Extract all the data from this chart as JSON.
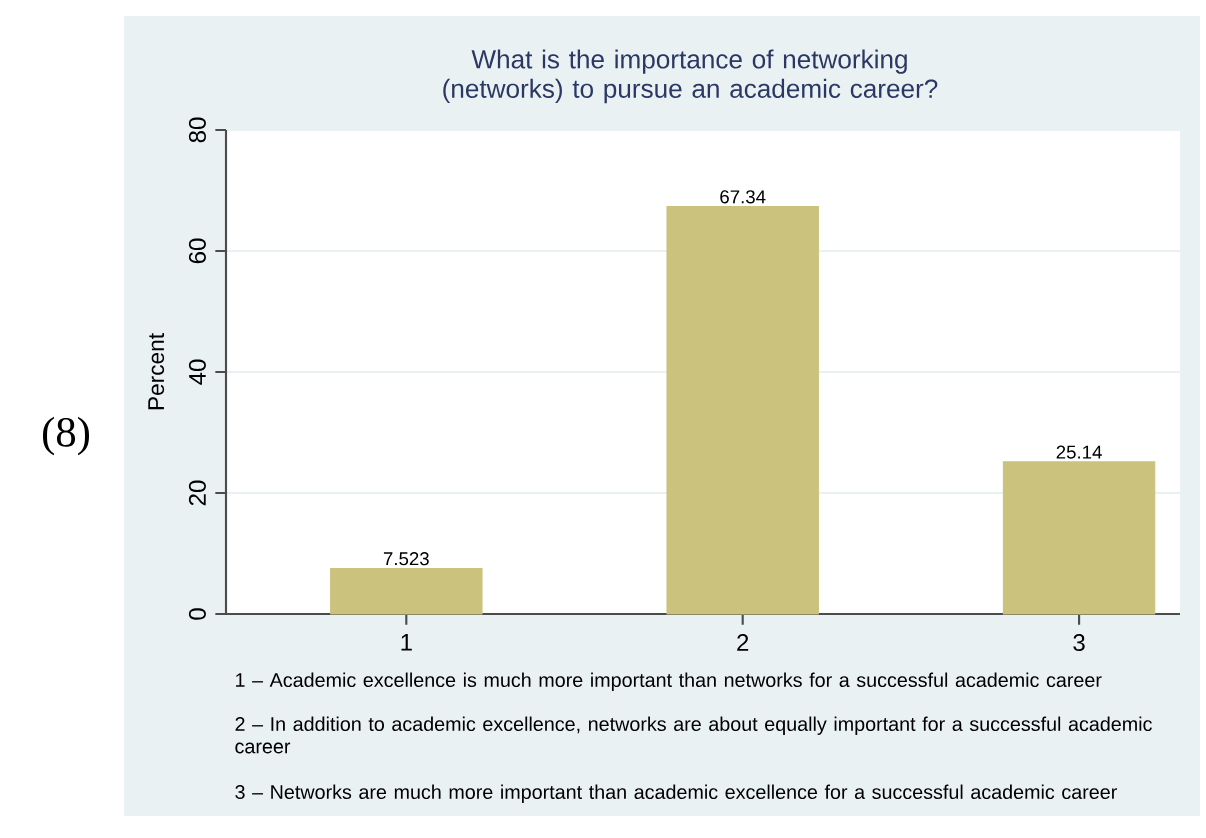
{
  "chart_data": {
    "type": "bar",
    "title": "What is the importance of networking (networks) to pursue an academic career?",
    "ylabel": "Percent",
    "categories": [
      "1",
      "2",
      "3"
    ],
    "values": [
      7.523,
      67.34,
      25.14
    ],
    "color": "#cbc27d",
    "ylim": [
      0,
      80
    ],
    "yticks": [
      0,
      20,
      40,
      60,
      80
    ],
    "grid": "y",
    "data_labels": true,
    "annotations": [
      "(8)",
      "1 – Academic excellence is much more important than networks for a successful academic career",
      "2 – In addition to academic excellence, networks are about equally important for a successful academic career",
      "3 – Networks are much more important than academic excellence for a successful academic career"
    ]
  }
}
